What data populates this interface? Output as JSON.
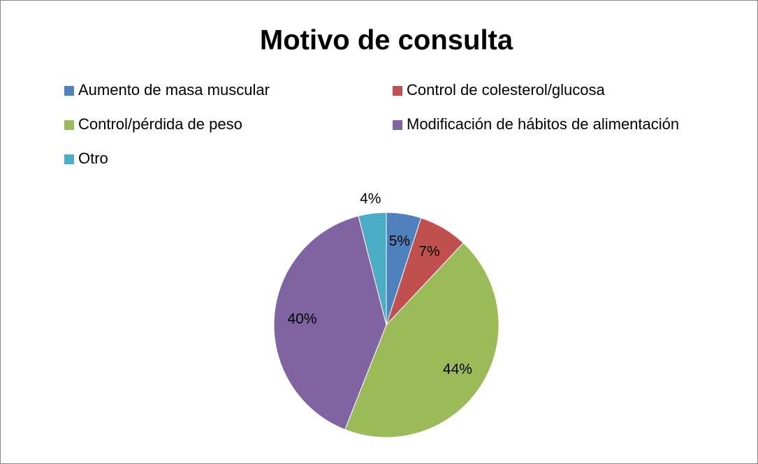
{
  "chart_data": {
    "type": "pie",
    "title": "Motivo de consulta",
    "categories": [
      "Aumento de masa muscular",
      "Control de colesterol/glucosa",
      "Control/pérdida de peso",
      "Modificación de hábitos de alimentación",
      "Otro"
    ],
    "values": [
      5,
      7,
      44,
      40,
      4
    ],
    "value_labels": [
      "5%",
      "7%",
      "44%",
      "40%",
      "4%"
    ],
    "colors": [
      "#4f81bd",
      "#c0504d",
      "#9bbb59",
      "#8064a2",
      "#4bacc6"
    ],
    "legend": "top"
  }
}
